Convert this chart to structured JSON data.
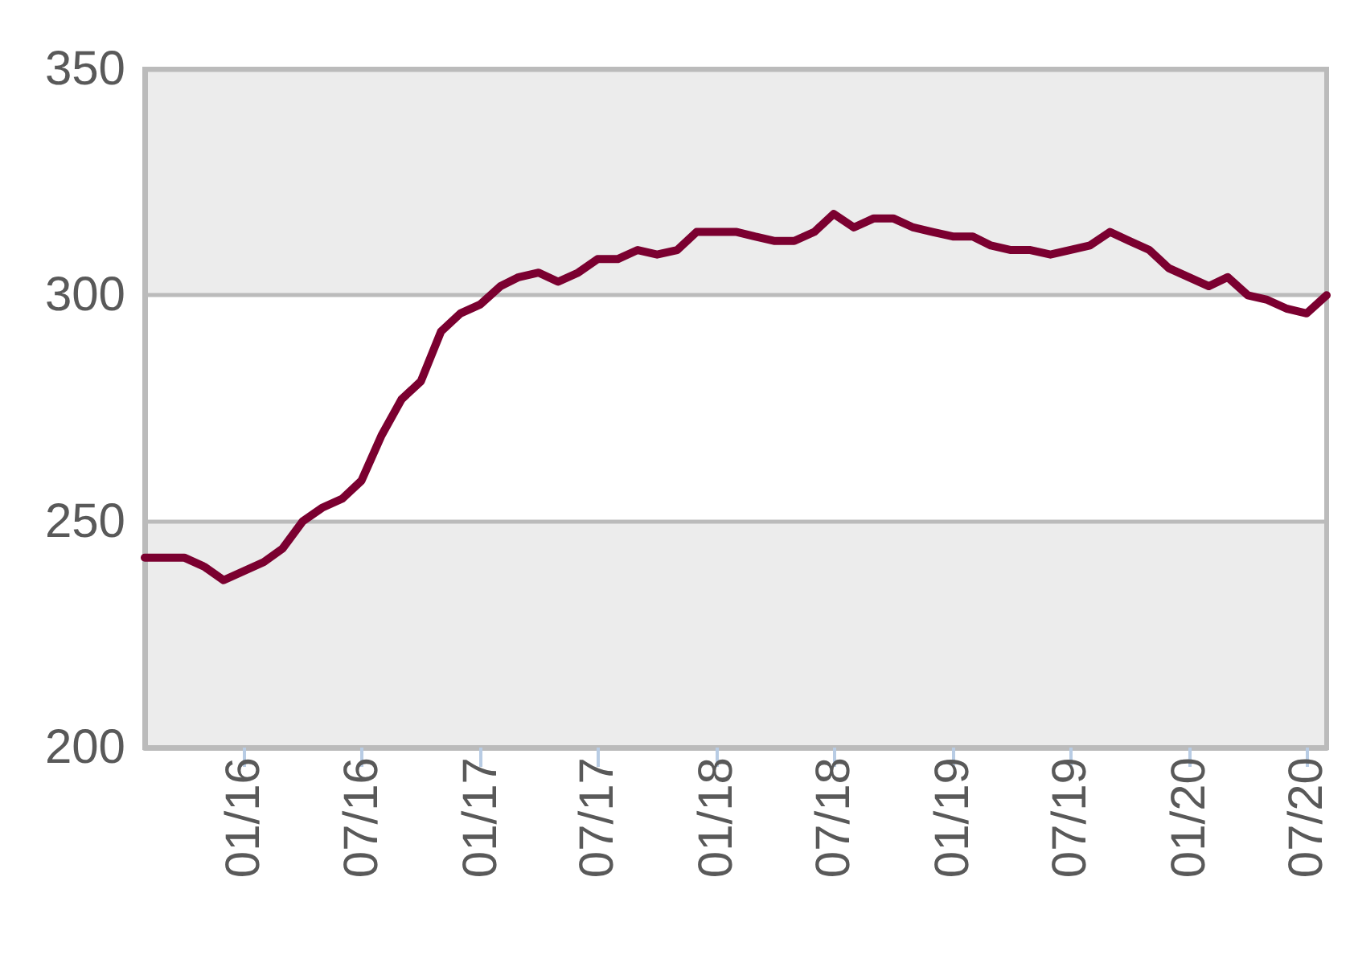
{
  "chart_data": {
    "type": "line",
    "x": [
      "2015-08",
      "2015-09",
      "2015-10",
      "2015-11",
      "2015-12",
      "2016-01",
      "2016-02",
      "2016-03",
      "2016-04",
      "2016-05",
      "2016-06",
      "2016-07",
      "2016-08",
      "2016-09",
      "2016-10",
      "2016-11",
      "2016-12",
      "2017-01",
      "2017-02",
      "2017-03",
      "2017-04",
      "2017-05",
      "2017-06",
      "2017-07",
      "2017-08",
      "2017-09",
      "2017-10",
      "2017-11",
      "2017-12",
      "2018-01",
      "2018-02",
      "2018-03",
      "2018-04",
      "2018-05",
      "2018-06",
      "2018-07",
      "2018-08",
      "2018-09",
      "2018-10",
      "2018-11",
      "2018-12",
      "2019-01",
      "2019-02",
      "2019-03",
      "2019-04",
      "2019-05",
      "2019-06",
      "2019-07",
      "2019-08",
      "2019-09",
      "2019-10",
      "2019-11",
      "2019-12",
      "2020-01",
      "2020-02",
      "2020-03",
      "2020-04",
      "2020-05",
      "2020-06",
      "2020-07",
      "2020-08"
    ],
    "series": [
      {
        "color": "#7b0030",
        "values": [
          242,
          242,
          242,
          240,
          237,
          239,
          241,
          244,
          250,
          253,
          255,
          259,
          269,
          277,
          281,
          292,
          296,
          298,
          302,
          304,
          305,
          303,
          305,
          308,
          308,
          310,
          309,
          310,
          314,
          314,
          314,
          313,
          312,
          312,
          314,
          318,
          315,
          317,
          317,
          315,
          314,
          313,
          313,
          311,
          310,
          310,
          309,
          310,
          311,
          314,
          312,
          310,
          306,
          304,
          302,
          304,
          300,
          299,
          297,
          296,
          300
        ]
      }
    ],
    "xlim": [
      "2015-08",
      "2020-08"
    ],
    "xticks": [
      {
        "value": "2016-01",
        "label": "01/16"
      },
      {
        "value": "2016-07",
        "label": "07/16"
      },
      {
        "value": "2017-01",
        "label": "01/17"
      },
      {
        "value": "2017-07",
        "label": "07/17"
      },
      {
        "value": "2018-01",
        "label": "01/18"
      },
      {
        "value": "2018-07",
        "label": "07/18"
      },
      {
        "value": "2019-01",
        "label": "01/19"
      },
      {
        "value": "2019-07",
        "label": "07/19"
      },
      {
        "value": "2020-01",
        "label": "01/20"
      },
      {
        "value": "2020-07",
        "label": "07/20"
      }
    ],
    "ylim": [
      200,
      350
    ],
    "yticks": [
      200,
      250,
      300,
      350
    ],
    "bands": [
      {
        "axis": "y",
        "from": 200,
        "to": 250,
        "color": "#ececec"
      },
      {
        "axis": "y",
        "from": 300,
        "to": 350,
        "color": "#ececec"
      }
    ],
    "grid": "y",
    "marker": "none",
    "line_style": "solid"
  }
}
